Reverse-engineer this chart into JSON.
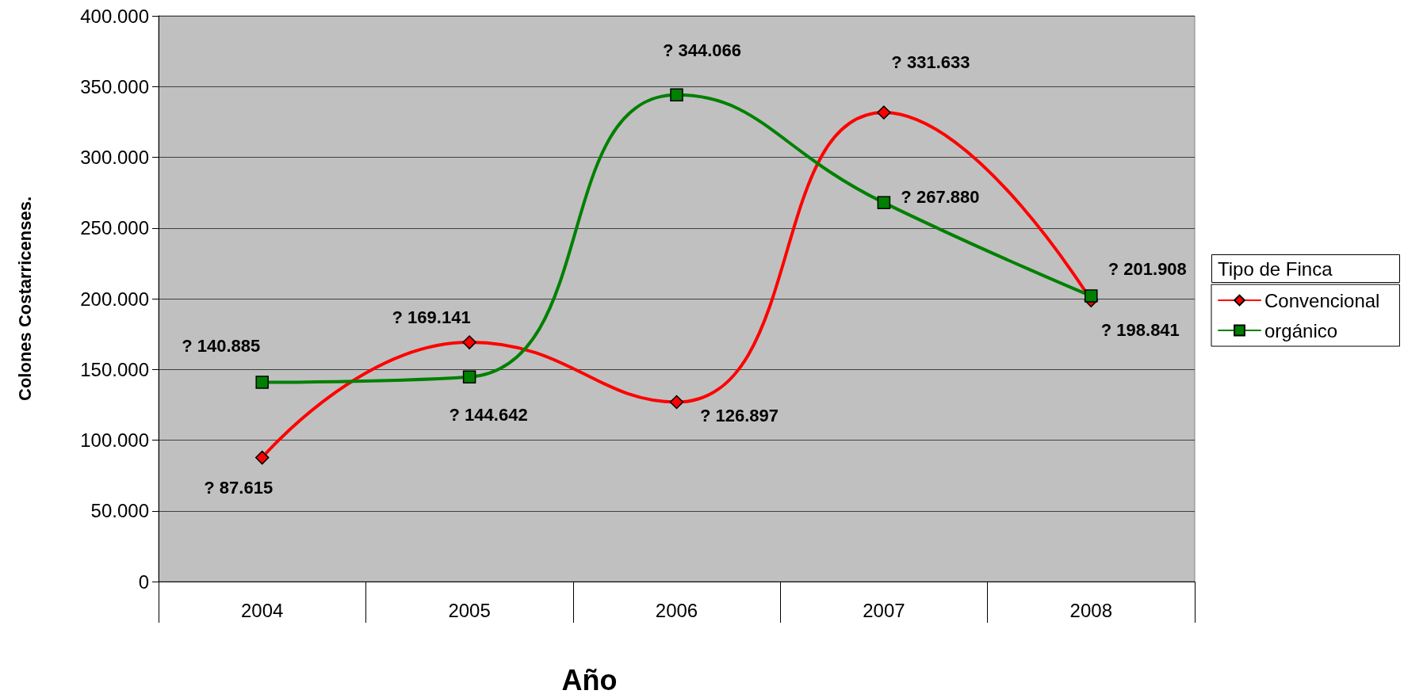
{
  "chart_data": {
    "type": "line",
    "xlabel": "Año",
    "ylabel": "Colones Costarricenses.",
    "legend_title": "Tipo de Finca",
    "categories": [
      "2004",
      "2005",
      "2006",
      "2007",
      "2008"
    ],
    "series": [
      {
        "name": "Convencional",
        "color": "#ff0000",
        "marker": "diamond",
        "values": [
          87615,
          169141,
          126897,
          331633,
          198841
        ],
        "value_labels": [
          "? 87.615",
          "? 169.141",
          "? 126.897",
          "? 331.633",
          "? 198.841"
        ]
      },
      {
        "name": "orgánico",
        "color": "#008000",
        "marker": "square",
        "values": [
          140885,
          144642,
          344066,
          267880,
          201908
        ],
        "value_labels": [
          "? 140.885",
          "? 144.642",
          "? 344.066",
          "? 267.880",
          "? 201.908"
        ]
      }
    ],
    "ylim": [
      0,
      400000
    ],
    "yticks": [
      0,
      {
        "value": 50000,
        "label": "50.000"
      },
      {
        "value": 100000,
        "label": "100.000"
      },
      {
        "value": 150000,
        "label": "150.000"
      },
      {
        "value": 200000,
        "label": "200.000"
      },
      {
        "value": 250000,
        "label": "250.000"
      },
      {
        "value": 300000,
        "label": "300.000"
      },
      {
        "value": 350000,
        "label": "350.000"
      },
      {
        "value": 400000,
        "label": "400.000"
      }
    ],
    "grid": "y",
    "legend": "right",
    "line_style": "solid"
  }
}
